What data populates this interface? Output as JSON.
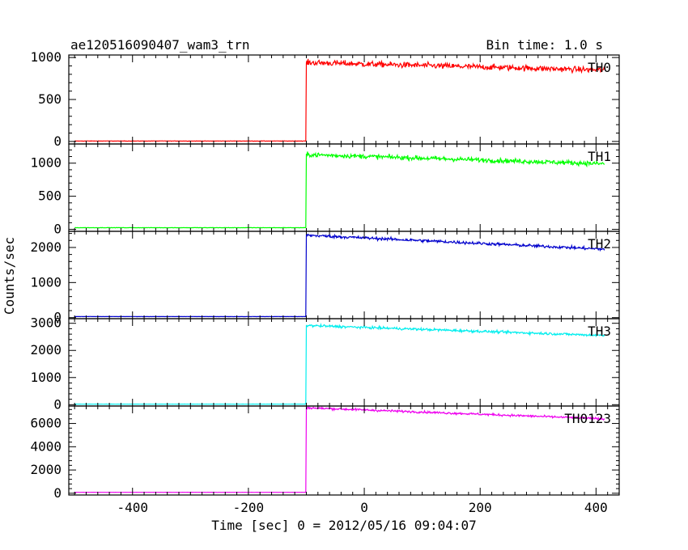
{
  "header": {
    "title": "ae120516090407_wam3_trn",
    "bin_time": "Bin time: 1.0 s"
  },
  "axes": {
    "xlabel": "Time [sec] 0 = 2012/05/16 09:04:07",
    "ylabel": "Counts/sec"
  },
  "chart_data": [
    {
      "type": "line",
      "series": [
        {
          "name": "TH0",
          "color": "#ff0000"
        }
      ],
      "xlim": [
        -510,
        440
      ],
      "ylim": [
        -30,
        1030
      ],
      "yticks": [
        0,
        500,
        1000
      ],
      "xticks": [
        -400,
        -200,
        0,
        200,
        400
      ],
      "background_level": 5,
      "rise_time": -100,
      "start_level": 940,
      "end_level": 850,
      "noise": 45
    },
    {
      "type": "line",
      "series": [
        {
          "name": "TH1",
          "color": "#00ff00"
        }
      ],
      "xlim": [
        -510,
        440
      ],
      "ylim": [
        -30,
        1290
      ],
      "yticks": [
        0,
        500,
        1000
      ],
      "xticks": [
        -400,
        -200,
        0,
        200,
        400
      ],
      "background_level": 25,
      "rise_time": -100,
      "start_level": 1130,
      "end_level": 990,
      "noise": 45
    },
    {
      "type": "line",
      "series": [
        {
          "name": "TH2",
          "color": "#0000cc"
        }
      ],
      "xlim": [
        -510,
        440
      ],
      "ylim": [
        -30,
        2460
      ],
      "yticks": [
        0,
        1000,
        2000
      ],
      "xticks": [
        -400,
        -200,
        0,
        200,
        400
      ],
      "background_level": 30,
      "rise_time": -100,
      "start_level": 2350,
      "end_level": 1950,
      "noise": 55
    },
    {
      "type": "line",
      "series": [
        {
          "name": "TH3",
          "color": "#00eeee"
        }
      ],
      "xlim": [
        -510,
        440
      ],
      "ylim": [
        -50,
        3170
      ],
      "yticks": [
        0,
        1000,
        2000,
        3000
      ],
      "xticks": [
        -400,
        -200,
        0,
        200,
        400
      ],
      "background_level": 20,
      "rise_time": -100,
      "start_level": 2920,
      "end_level": 2550,
      "noise": 60
    },
    {
      "type": "line",
      "series": [
        {
          "name": "TH0123",
          "color": "#ee00ee"
        }
      ],
      "xlim": [
        -510,
        440
      ],
      "ylim": [
        -150,
        7500
      ],
      "yticks": [
        0,
        2000,
        4000,
        6000
      ],
      "xticks": [
        -400,
        -200,
        0,
        200,
        400
      ],
      "background_level": 80,
      "rise_time": -100,
      "start_level": 7350,
      "end_level": 6400,
      "noise": 120
    }
  ]
}
